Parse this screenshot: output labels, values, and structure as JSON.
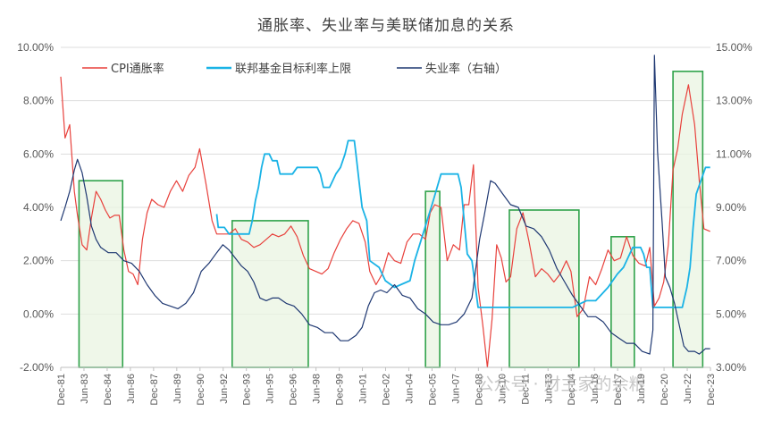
{
  "chart_data": {
    "type": "line",
    "title": "通胀率、失业率与美联储加息的关系",
    "left_axis": {
      "range": [
        -2,
        10
      ],
      "ticks": [
        "-2.00%",
        "0.00%",
        "2.00%",
        "4.00%",
        "6.00%",
        "8.00%",
        "10.00%"
      ],
      "tick_values": [
        -2,
        0,
        2,
        4,
        6,
        8,
        10
      ]
    },
    "right_axis": {
      "range": [
        3,
        15
      ],
      "ticks": [
        "3.00%",
        "5.00%",
        "7.00%",
        "9.00%",
        "11.00%",
        "13.00%",
        "15.00%"
      ],
      "tick_values": [
        3,
        5,
        7,
        9,
        11,
        13,
        15
      ]
    },
    "x_range": [
      1981.92,
      2023.92
    ],
    "x_ticks": [
      "Dec-81",
      "Jun-83",
      "Dec-84",
      "Jun-86",
      "Dec-87",
      "Jun-89",
      "Dec-90",
      "Jun-92",
      "Dec-93",
      "Jun-95",
      "Dec-96",
      "Jun-98",
      "Dec-99",
      "Jun-01",
      "Dec-02",
      "Jun-04",
      "Dec-05",
      "Jun-07",
      "Dec-08",
      "Jun-10",
      "Dec-11",
      "Jun-13",
      "Dec-14",
      "Jun-16",
      "Dec-17",
      "Jun-19",
      "Dec-20",
      "Jun-22",
      "Dec-23"
    ],
    "x_tick_values": [
      1981.92,
      1983.42,
      1984.92,
      1986.42,
      1987.92,
      1989.42,
      1990.92,
      1992.42,
      1993.92,
      1995.42,
      1996.92,
      1998.42,
      1999.92,
      2001.42,
      2002.92,
      2004.42,
      2005.92,
      2007.42,
      2008.92,
      2010.42,
      2011.92,
      2013.42,
      2014.92,
      2016.42,
      2017.92,
      2019.42,
      2020.92,
      2022.42,
      2023.92
    ],
    "series": [
      {
        "name": "CPI通胀率",
        "axis": "left",
        "color": "#e8413c",
        "x": [
          1981.92,
          1982.2,
          1982.5,
          1982.8,
          1983.0,
          1983.3,
          1983.6,
          1983.9,
          1984.2,
          1984.5,
          1984.8,
          1985.1,
          1985.4,
          1985.7,
          1986.0,
          1986.3,
          1986.6,
          1986.9,
          1987.2,
          1987.5,
          1987.8,
          1988.2,
          1988.6,
          1989.0,
          1989.4,
          1989.8,
          1990.2,
          1990.6,
          1990.9,
          1991.3,
          1991.7,
          1992.0,
          1992.4,
          1992.8,
          1993.2,
          1993.6,
          1994.0,
          1994.4,
          1994.8,
          1995.2,
          1995.6,
          1996.0,
          1996.4,
          1996.8,
          1997.2,
          1997.6,
          1998.0,
          1998.4,
          1998.8,
          1999.2,
          1999.6,
          2000.0,
          2000.4,
          2000.8,
          2001.2,
          2001.6,
          2001.9,
          2002.3,
          2002.7,
          2003.1,
          2003.5,
          2003.9,
          2004.3,
          2004.7,
          2005.1,
          2005.5,
          2005.8,
          2006.1,
          2006.5,
          2006.9,
          2007.3,
          2007.7,
          2008.0,
          2008.3,
          2008.6,
          2008.9,
          2009.2,
          2009.5,
          2009.8,
          2010.1,
          2010.4,
          2010.7,
          2011.0,
          2011.4,
          2011.8,
          2012.2,
          2012.6,
          2013.0,
          2013.4,
          2013.8,
          2014.2,
          2014.6,
          2014.9,
          2015.3,
          2015.7,
          2016.1,
          2016.5,
          2016.9,
          2017.3,
          2017.7,
          2018.1,
          2018.5,
          2018.9,
          2019.3,
          2019.7,
          2020.0,
          2020.3,
          2020.6,
          2020.9,
          2021.2,
          2021.5,
          2021.8,
          2022.1,
          2022.5,
          2022.9,
          2023.2,
          2023.5,
          2023.9
        ],
        "values": [
          8.9,
          6.6,
          7.1,
          4.6,
          3.7,
          2.6,
          2.4,
          3.6,
          4.6,
          4.3,
          3.9,
          3.6,
          3.7,
          3.7,
          2.4,
          1.6,
          1.5,
          1.1,
          2.8,
          3.8,
          4.3,
          4.1,
          4.0,
          4.6,
          5.0,
          4.6,
          5.2,
          5.5,
          6.2,
          4.9,
          3.5,
          3.0,
          3.0,
          3.0,
          3.2,
          2.8,
          2.7,
          2.5,
          2.6,
          2.8,
          3.0,
          2.9,
          3.0,
          3.3,
          2.9,
          2.2,
          1.7,
          1.6,
          1.5,
          1.7,
          2.3,
          2.8,
          3.2,
          3.5,
          3.4,
          2.7,
          1.6,
          1.1,
          1.5,
          2.3,
          2.0,
          1.9,
          2.7,
          3.0,
          3.0,
          2.8,
          3.8,
          4.1,
          4.0,
          2.0,
          2.6,
          2.4,
          4.1,
          4.1,
          5.6,
          1.0,
          -0.4,
          -2.0,
          -0.2,
          2.6,
          2.1,
          1.2,
          1.4,
          3.2,
          3.8,
          2.7,
          1.4,
          1.7,
          1.5,
          1.2,
          1.5,
          2.0,
          1.6,
          -0.1,
          0.2,
          1.4,
          1.1,
          1.7,
          2.4,
          2.0,
          2.1,
          2.9,
          2.2,
          1.9,
          1.8,
          2.5,
          0.3,
          0.6,
          1.2,
          2.6,
          5.4,
          6.2,
          7.5,
          8.6,
          7.1,
          5.0,
          3.2,
          3.1
        ]
      },
      {
        "name": "联邦基金目标利率上限",
        "axis": "left",
        "color": "#1ab3e6",
        "x": [
          1992.0,
          1992.1,
          1992.3,
          1992.5,
          1992.8,
          1993.2,
          1993.6,
          1993.9,
          1994.1,
          1994.3,
          1994.5,
          1994.7,
          1994.9,
          1995.1,
          1995.4,
          1995.6,
          1995.9,
          1996.1,
          1996.5,
          1996.9,
          1997.2,
          1997.6,
          1998.0,
          1998.5,
          1998.7,
          1998.9,
          1999.3,
          1999.5,
          1999.7,
          2000.0,
          2000.3,
          2000.5,
          2000.9,
          2001.0,
          2001.2,
          2001.4,
          2001.7,
          2001.9,
          2002.5,
          2002.9,
          2003.5,
          2004.5,
          2004.8,
          2005.2,
          2005.6,
          2006.0,
          2006.5,
          2007.0,
          2007.6,
          2007.8,
          2008.0,
          2008.2,
          2008.5,
          2008.9,
          2009.5,
          2011.0,
          2012.0,
          2013.0,
          2014.0,
          2015.0,
          2015.9,
          2016.5,
          2016.9,
          2017.3,
          2017.9,
          2018.3,
          2018.9,
          2019.4,
          2019.6,
          2019.8,
          2020.0,
          2020.2,
          2020.5,
          2021.0,
          2021.5,
          2022.1,
          2022.2,
          2022.4,
          2022.6,
          2022.8,
          2023.0,
          2023.3,
          2023.6,
          2023.9
        ],
        "values": [
          3.75,
          3.25,
          3.25,
          3.25,
          3.0,
          3.0,
          3.0,
          3.0,
          3.0,
          3.5,
          4.25,
          4.75,
          5.5,
          6.0,
          6.0,
          5.75,
          5.75,
          5.25,
          5.25,
          5.25,
          5.5,
          5.5,
          5.5,
          5.5,
          5.25,
          4.75,
          4.75,
          5.0,
          5.25,
          5.5,
          6.0,
          6.5,
          6.5,
          6.0,
          5.0,
          4.0,
          3.5,
          2.0,
          1.75,
          1.25,
          1.0,
          1.25,
          2.0,
          2.75,
          3.5,
          4.25,
          5.25,
          5.25,
          5.25,
          4.75,
          3.5,
          2.25,
          2.0,
          0.25,
          0.25,
          0.25,
          0.25,
          0.25,
          0.25,
          0.25,
          0.5,
          0.5,
          0.75,
          1.0,
          1.5,
          1.75,
          2.5,
          2.5,
          2.25,
          1.75,
          1.75,
          0.25,
          0.25,
          0.25,
          0.25,
          0.25,
          0.5,
          1.0,
          1.75,
          3.25,
          4.5,
          5.0,
          5.5,
          5.5
        ]
      },
      {
        "name": "失业率（右轴）",
        "axis": "right",
        "color": "#1f3872",
        "x": [
          1981.92,
          1982.2,
          1982.5,
          1982.8,
          1983.0,
          1983.3,
          1983.6,
          1983.9,
          1984.2,
          1984.5,
          1985.0,
          1985.5,
          1986.0,
          1986.5,
          1987.0,
          1987.5,
          1988.0,
          1988.5,
          1989.0,
          1989.5,
          1990.0,
          1990.5,
          1991.0,
          1991.5,
          1992.0,
          1992.4,
          1992.8,
          1993.2,
          1993.6,
          1994.0,
          1994.4,
          1994.8,
          1995.2,
          1995.6,
          1996.0,
          1996.5,
          1997.0,
          1997.5,
          1998.0,
          1998.5,
          1999.0,
          1999.5,
          2000.0,
          2000.5,
          2001.0,
          2001.4,
          2001.8,
          2002.2,
          2002.6,
          2003.0,
          2003.5,
          2004.0,
          2004.5,
          2005.0,
          2005.5,
          2006.0,
          2006.5,
          2007.0,
          2007.5,
          2008.0,
          2008.5,
          2009.0,
          2009.3,
          2009.7,
          2010.0,
          2010.5,
          2011.0,
          2011.5,
          2012.0,
          2012.5,
          2013.0,
          2013.5,
          2014.0,
          2014.5,
          2015.0,
          2015.5,
          2016.0,
          2016.5,
          2017.0,
          2017.5,
          2018.0,
          2018.5,
          2019.0,
          2019.5,
          2020.0,
          2020.2,
          2020.3,
          2020.5,
          2020.8,
          2021.0,
          2021.3,
          2021.6,
          2021.9,
          2022.2,
          2022.5,
          2022.9,
          2023.2,
          2023.6,
          2023.9
        ],
        "values": [
          8.5,
          9.0,
          9.6,
          10.4,
          10.8,
          10.3,
          9.4,
          8.3,
          7.8,
          7.5,
          7.3,
          7.3,
          7.0,
          6.9,
          6.6,
          6.1,
          5.7,
          5.4,
          5.3,
          5.2,
          5.4,
          5.8,
          6.6,
          6.9,
          7.3,
          7.6,
          7.4,
          7.1,
          6.8,
          6.6,
          6.2,
          5.6,
          5.5,
          5.6,
          5.6,
          5.4,
          5.3,
          5.0,
          4.6,
          4.5,
          4.3,
          4.3,
          4.0,
          4.0,
          4.2,
          4.5,
          5.3,
          5.8,
          5.9,
          5.8,
          6.1,
          5.7,
          5.6,
          5.2,
          5.0,
          4.7,
          4.6,
          4.6,
          4.7,
          5.0,
          5.6,
          7.8,
          8.7,
          10.0,
          9.9,
          9.5,
          9.1,
          9.0,
          8.3,
          8.2,
          7.9,
          7.4,
          6.7,
          6.2,
          5.7,
          5.3,
          4.9,
          4.9,
          4.7,
          4.3,
          4.1,
          3.9,
          3.9,
          3.6,
          3.5,
          4.4,
          14.7,
          11.1,
          8.4,
          6.4,
          6.0,
          5.4,
          4.6,
          3.8,
          3.6,
          3.6,
          3.5,
          3.7,
          3.7
        ]
      }
    ],
    "highlight_boxes": [
      {
        "x": [
          1983.1,
          1985.92
        ]
      },
      {
        "x": [
          1993.0,
          1997.92
        ]
      },
      {
        "x": [
          2005.5,
          2006.42
        ]
      },
      {
        "x": [
          2010.92,
          2015.42
        ]
      },
      {
        "x": [
          2017.5,
          2019.0
        ]
      },
      {
        "x": [
          2021.5,
          2023.42
        ]
      }
    ],
    "grid": true,
    "legend": "top-left"
  },
  "watermark": "公众号 · 财主家的余粮",
  "colors": {
    "highlight_fill": "#eaf4e1",
    "highlight_stroke": "#2fa24a",
    "grid": "#dddddd"
  }
}
